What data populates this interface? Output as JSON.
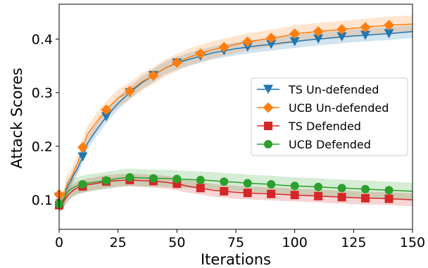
{
  "chart_data": {
    "type": "line",
    "title": "",
    "xlabel": "Iterations",
    "ylabel": "Attack Scores",
    "xlim": [
      0,
      150
    ],
    "ylim": [
      0.045,
      0.465
    ],
    "x_ticks": [
      0,
      25,
      50,
      75,
      100,
      125,
      150
    ],
    "y_ticks": [
      0.1,
      0.2,
      0.3,
      0.4
    ],
    "x_tick_labels": [
      "0",
      "25",
      "50",
      "75",
      "100",
      "125",
      "150"
    ],
    "y_tick_labels": [
      "0.1",
      "0.2",
      "0.3",
      "0.4"
    ],
    "grid": false,
    "legend_position": "center-right",
    "x": [
      0,
      1,
      2,
      3,
      4,
      5,
      6,
      8,
      10,
      12,
      15,
      20,
      25,
      30,
      35,
      40,
      45,
      50,
      55,
      60,
      65,
      70,
      75,
      80,
      85,
      90,
      95,
      100,
      105,
      110,
      115,
      120,
      125,
      130,
      135,
      140,
      145,
      150
    ],
    "marker_x": [
      0,
      10,
      20,
      30,
      40,
      50,
      60,
      70,
      80,
      90,
      100,
      110,
      120,
      130,
      140
    ],
    "series": [
      {
        "name": "TS Un-defended",
        "color": "#1f77b4",
        "marker": "triangle-down",
        "values": [
          0.105,
          0.09,
          0.098,
          0.118,
          0.128,
          0.135,
          0.145,
          0.16,
          0.18,
          0.205,
          0.225,
          0.255,
          0.28,
          0.3,
          0.318,
          0.332,
          0.346,
          0.355,
          0.362,
          0.368,
          0.374,
          0.378,
          0.382,
          0.385,
          0.388,
          0.39,
          0.393,
          0.395,
          0.398,
          0.4,
          0.402,
          0.404,
          0.406,
          0.407,
          0.409,
          0.41,
          0.412,
          0.414
        ],
        "band": 0.012
      },
      {
        "name": "UCB Un-defended",
        "color": "#ff7f0e",
        "marker": "diamond",
        "values": [
          0.11,
          0.095,
          0.103,
          0.125,
          0.135,
          0.14,
          0.15,
          0.17,
          0.198,
          0.222,
          0.24,
          0.268,
          0.29,
          0.303,
          0.32,
          0.332,
          0.346,
          0.356,
          0.366,
          0.373,
          0.38,
          0.385,
          0.39,
          0.395,
          0.398,
          0.402,
          0.405,
          0.41,
          0.412,
          0.414,
          0.416,
          0.418,
          0.42,
          0.422,
          0.424,
          0.426,
          0.427,
          0.428
        ],
        "band": 0.016
      },
      {
        "name": "TS Defended",
        "color": "#d62728",
        "marker": "square",
        "values": [
          0.09,
          0.094,
          0.098,
          0.104,
          0.11,
          0.114,
          0.118,
          0.123,
          0.125,
          0.128,
          0.13,
          0.134,
          0.136,
          0.137,
          0.136,
          0.135,
          0.133,
          0.13,
          0.125,
          0.122,
          0.118,
          0.116,
          0.114,
          0.113,
          0.112,
          0.111,
          0.11,
          0.109,
          0.108,
          0.107,
          0.106,
          0.105,
          0.104,
          0.103,
          0.103,
          0.102,
          0.101,
          0.1
        ],
        "band": 0.012
      },
      {
        "name": "UCB Defended",
        "color": "#2ca02c",
        "marker": "circle",
        "values": [
          0.092,
          0.096,
          0.102,
          0.11,
          0.116,
          0.12,
          0.123,
          0.127,
          0.129,
          0.131,
          0.133,
          0.136,
          0.14,
          0.142,
          0.141,
          0.14,
          0.14,
          0.139,
          0.138,
          0.137,
          0.136,
          0.134,
          0.133,
          0.131,
          0.13,
          0.129,
          0.127,
          0.126,
          0.125,
          0.124,
          0.123,
          0.122,
          0.121,
          0.12,
          0.119,
          0.118,
          0.117,
          0.116
        ],
        "band": 0.016
      }
    ]
  }
}
